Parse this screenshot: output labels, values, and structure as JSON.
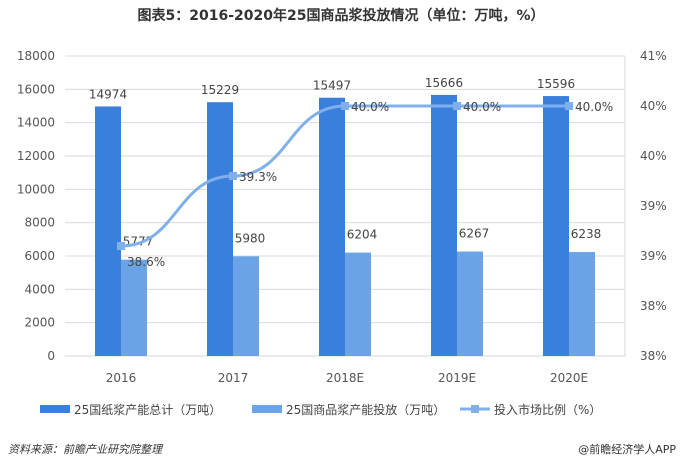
{
  "chart_data": {
    "type": "bar+line",
    "title": "图表5：2016-2020年25国商品浆投放情况（单位：万吨，%）",
    "categories": [
      "2016",
      "2017",
      "2018E",
      "2019E",
      "2020E"
    ],
    "series": [
      {
        "name": "25国纸浆产能总计（万吨）",
        "type": "bar",
        "axis": "left",
        "color": "#3b7fdc",
        "values": [
          14974,
          15229,
          15497,
          15666,
          15596
        ],
        "labels": [
          "14974",
          "15229",
          "15497",
          "15666",
          "15596"
        ]
      },
      {
        "name": "25国商品浆产能投放（万吨）",
        "type": "bar",
        "axis": "left",
        "color": "#6aa3e6",
        "values": [
          5777,
          5980,
          6204,
          6267,
          6238
        ],
        "labels": [
          "5777",
          "5980",
          "6204",
          "6267",
          "6238"
        ]
      },
      {
        "name": "投入市场比例（%）",
        "type": "line",
        "axis": "right",
        "color": "#7fb0ec",
        "values": [
          38.6,
          39.3,
          40.0,
          40.0,
          40.0
        ],
        "labels": [
          "38.6%",
          "39.3%",
          "40.0%",
          "40.0%",
          "40.0%"
        ]
      }
    ],
    "ylim": [
      0,
      18000
    ],
    "yticks": [
      "0",
      "2000",
      "4000",
      "6000",
      "8000",
      "10000",
      "12000",
      "14000",
      "16000",
      "18000"
    ],
    "ylim_right": [
      37.5,
      40.5
    ],
    "yticks_right": [
      "38%",
      "38%",
      "39%",
      "39%",
      "40%",
      "40%",
      "41%"
    ],
    "grid": true,
    "legend": "bottom"
  },
  "footer": {
    "source": "资料来源：前瞻产业研究院整理",
    "brand": "@前瞻经济学人APP"
  }
}
